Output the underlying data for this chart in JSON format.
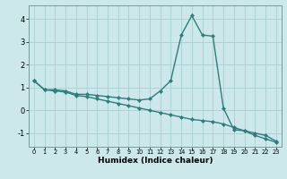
{
  "xlabel": "Humidex (Indice chaleur)",
  "background_color": "#cce8ea",
  "grid_color": "#aacfd2",
  "line_color": "#2e7d7a",
  "x_humidex": [
    0,
    1,
    2,
    3,
    4,
    5,
    6,
    7,
    8,
    9,
    10,
    11,
    12,
    13,
    14,
    15,
    16,
    17,
    18,
    19,
    20,
    21,
    22,
    23
  ],
  "curve1_y": [
    1.3,
    0.9,
    0.9,
    0.85,
    0.7,
    0.7,
    0.65,
    0.6,
    0.55,
    0.5,
    0.45,
    0.5,
    0.85,
    1.3,
    3.3,
    4.15,
    3.3,
    3.25,
    0.1,
    -0.85,
    -0.9,
    -1.1,
    -1.25,
    -1.4
  ],
  "curve2_y": [
    1.3,
    0.9,
    0.85,
    0.8,
    0.65,
    0.6,
    0.5,
    0.4,
    0.3,
    0.2,
    0.1,
    0.0,
    -0.1,
    -0.2,
    -0.3,
    -0.4,
    -0.45,
    -0.5,
    -0.6,
    -0.75,
    -0.9,
    -1.0,
    -1.1,
    -1.35
  ],
  "xlim": [
    -0.5,
    23.5
  ],
  "ylim": [
    -1.6,
    4.6
  ],
  "yticks": [
    -1,
    0,
    1,
    2,
    3,
    4
  ],
  "xticks": [
    0,
    1,
    2,
    3,
    4,
    5,
    6,
    7,
    8,
    9,
    10,
    11,
    12,
    13,
    14,
    15,
    16,
    17,
    18,
    19,
    20,
    21,
    22,
    23
  ],
  "xlabel_fontsize": 6.5,
  "xlabel_fontweight": "bold",
  "ytick_fontsize": 6,
  "xtick_fontsize": 4.8,
  "linewidth": 1.0,
  "markersize": 2.2
}
